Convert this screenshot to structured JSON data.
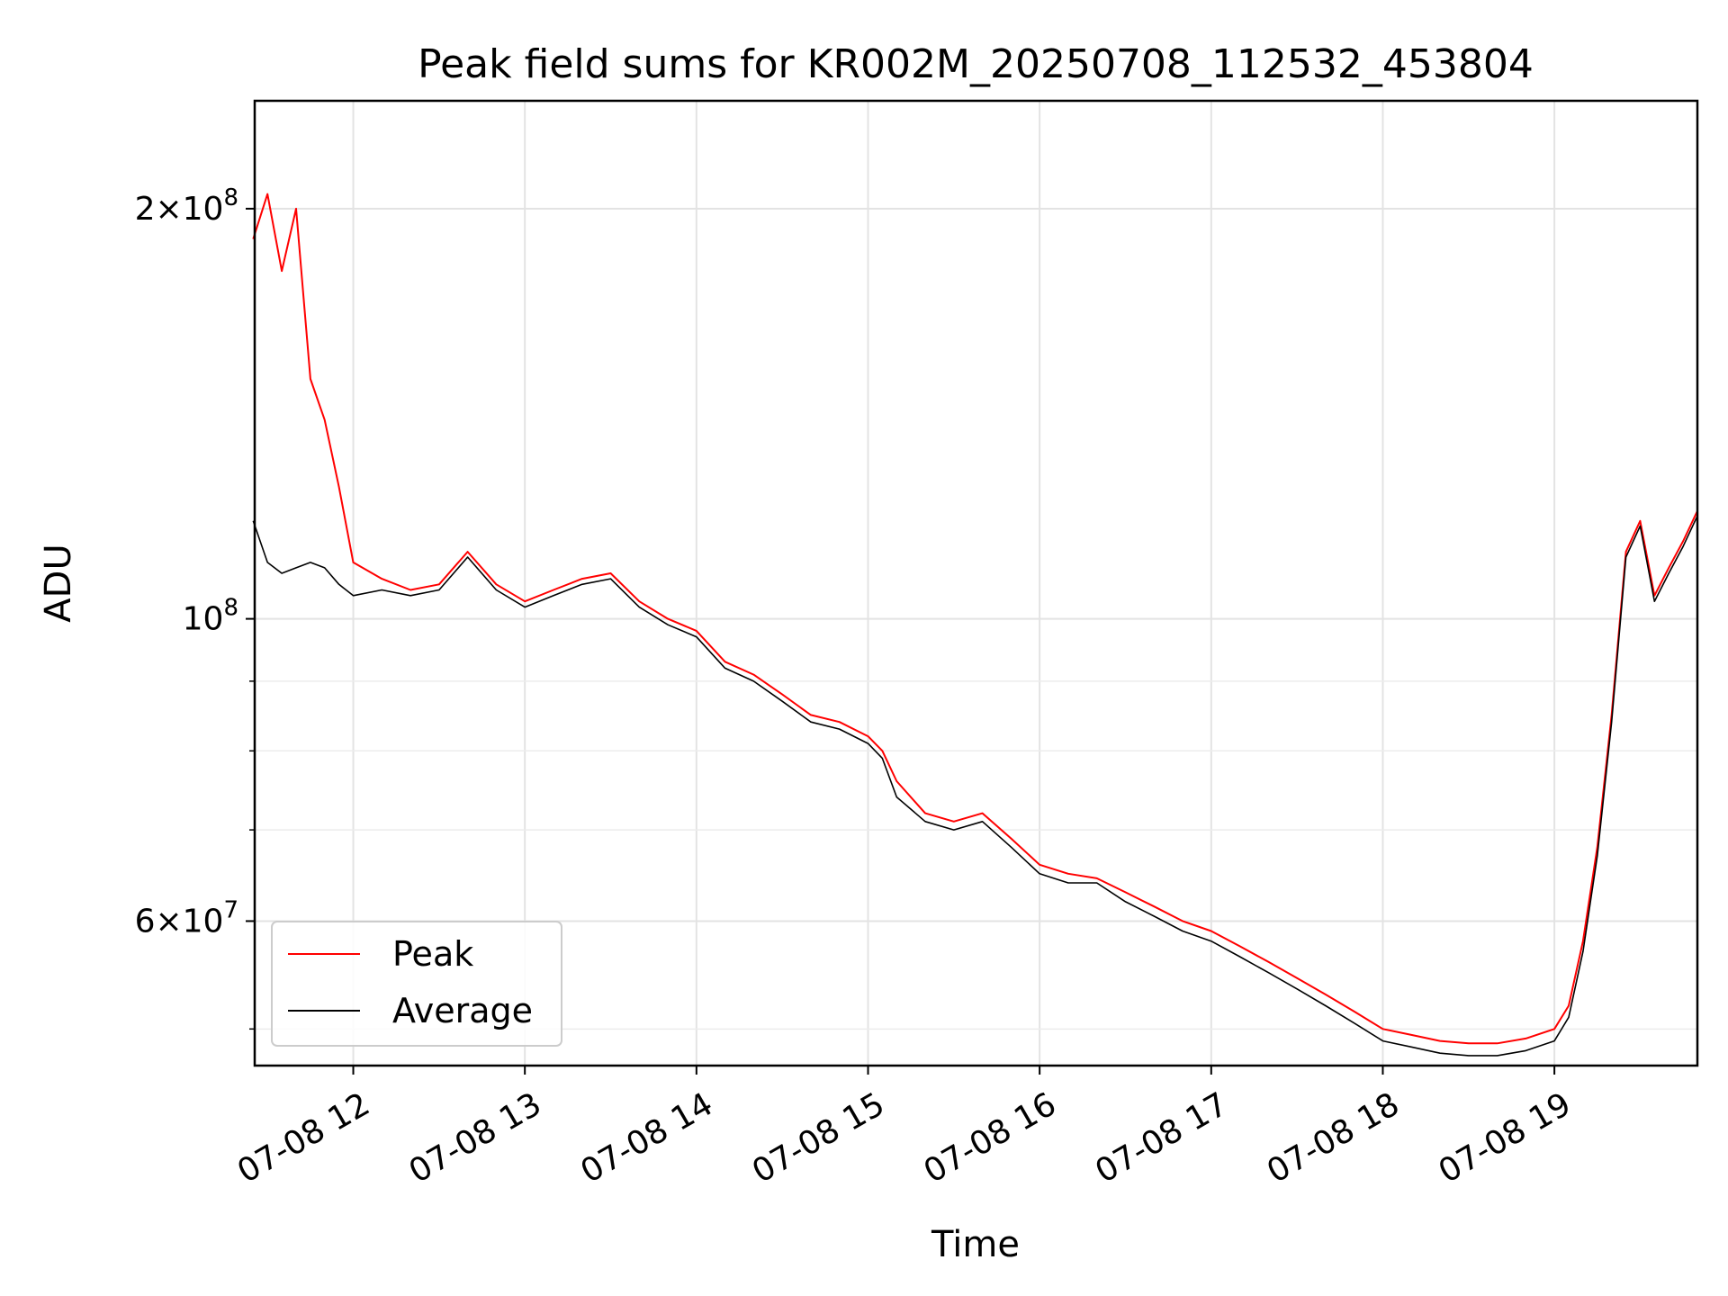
{
  "chart_data": {
    "type": "line",
    "title": "Peak field sums for KR002M_20250708_112532_453804",
    "xlabel": "Time",
    "ylabel": "ADU",
    "yscale": "log",
    "ylim": [
      47000000,
      240000000
    ],
    "xlim": [
      "2025-07-08 11:25:32",
      "2025-07-08 19:50:00"
    ],
    "grid": true,
    "legend_position": "lower-left",
    "x_ticks": [
      {
        "t": "2025-07-08 12:00",
        "label": "07-08 12"
      },
      {
        "t": "2025-07-08 13:00",
        "label": "07-08 13"
      },
      {
        "t": "2025-07-08 14:00",
        "label": "07-08 14"
      },
      {
        "t": "2025-07-08 15:00",
        "label": "07-08 15"
      },
      {
        "t": "2025-07-08 16:00",
        "label": "07-08 16"
      },
      {
        "t": "2025-07-08 17:00",
        "label": "07-08 17"
      },
      {
        "t": "2025-07-08 18:00",
        "label": "07-08 18"
      },
      {
        "t": "2025-07-08 19:00",
        "label": "07-08 19"
      }
    ],
    "y_major_ticks": [
      {
        "v": 100000000,
        "base": "10",
        "exp": "8"
      },
      {
        "v": 200000000,
        "mant": "2",
        "base": "10",
        "exp": "8"
      },
      {
        "v": 60000000,
        "mant": "6",
        "base": "10",
        "exp": "7"
      }
    ],
    "y_minor_ticks": [
      50000000,
      70000000,
      80000000,
      90000000
    ],
    "series": [
      {
        "name": "Peak",
        "color": "#ff0000",
        "x": [
          "2025-07-08 11:25",
          "2025-07-08 11:30",
          "2025-07-08 11:35",
          "2025-07-08 11:40",
          "2025-07-08 11:45",
          "2025-07-08 11:50",
          "2025-07-08 11:55",
          "2025-07-08 12:00",
          "2025-07-08 12:10",
          "2025-07-08 12:20",
          "2025-07-08 12:30",
          "2025-07-08 12:40",
          "2025-07-08 12:50",
          "2025-07-08 13:00",
          "2025-07-08 13:10",
          "2025-07-08 13:20",
          "2025-07-08 13:30",
          "2025-07-08 13:40",
          "2025-07-08 13:50",
          "2025-07-08 14:00",
          "2025-07-08 14:10",
          "2025-07-08 14:20",
          "2025-07-08 14:30",
          "2025-07-08 14:40",
          "2025-07-08 14:50",
          "2025-07-08 15:00",
          "2025-07-08 15:05",
          "2025-07-08 15:10",
          "2025-07-08 15:20",
          "2025-07-08 15:30",
          "2025-07-08 15:40",
          "2025-07-08 15:50",
          "2025-07-08 16:00",
          "2025-07-08 16:10",
          "2025-07-08 16:20",
          "2025-07-08 16:30",
          "2025-07-08 16:40",
          "2025-07-08 16:50",
          "2025-07-08 17:00",
          "2025-07-08 17:10",
          "2025-07-08 17:20",
          "2025-07-08 17:30",
          "2025-07-08 17:40",
          "2025-07-08 17:50",
          "2025-07-08 18:00",
          "2025-07-08 18:10",
          "2025-07-08 18:20",
          "2025-07-08 18:30",
          "2025-07-08 18:40",
          "2025-07-08 18:50",
          "2025-07-08 19:00",
          "2025-07-08 19:05",
          "2025-07-08 19:10",
          "2025-07-08 19:15",
          "2025-07-08 19:20",
          "2025-07-08 19:25",
          "2025-07-08 19:30",
          "2025-07-08 19:35",
          "2025-07-08 19:40",
          "2025-07-08 19:45",
          "2025-07-08 19:50"
        ],
        "y": [
          190000000,
          205000000,
          180000000,
          200000000,
          150000000,
          140000000,
          125000000,
          110000000,
          107000000,
          105000000,
          106000000,
          112000000,
          106000000,
          103000000,
          105000000,
          107000000,
          108000000,
          103000000,
          100000000,
          98000000,
          93000000,
          91000000,
          88000000,
          85000000,
          84000000,
          82000000,
          80000000,
          76000000,
          72000000,
          71000000,
          72000000,
          69000000,
          66000000,
          65000000,
          64500000,
          63000000,
          61500000,
          60000000,
          59000000,
          57500000,
          56000000,
          54500000,
          53000000,
          51500000,
          50000000,
          49500000,
          49000000,
          48800000,
          48800000,
          49200000,
          50000000,
          52000000,
          58000000,
          68000000,
          85000000,
          112000000,
          118000000,
          104000000,
          109000000,
          114000000,
          120000000
        ]
      },
      {
        "name": "Average",
        "color": "#000000",
        "x": [
          "2025-07-08 11:25",
          "2025-07-08 11:30",
          "2025-07-08 11:35",
          "2025-07-08 11:40",
          "2025-07-08 11:45",
          "2025-07-08 11:50",
          "2025-07-08 11:55",
          "2025-07-08 12:00",
          "2025-07-08 12:10",
          "2025-07-08 12:20",
          "2025-07-08 12:30",
          "2025-07-08 12:40",
          "2025-07-08 12:50",
          "2025-07-08 13:00",
          "2025-07-08 13:10",
          "2025-07-08 13:20",
          "2025-07-08 13:30",
          "2025-07-08 13:40",
          "2025-07-08 13:50",
          "2025-07-08 14:00",
          "2025-07-08 14:10",
          "2025-07-08 14:20",
          "2025-07-08 14:30",
          "2025-07-08 14:40",
          "2025-07-08 14:50",
          "2025-07-08 15:00",
          "2025-07-08 15:05",
          "2025-07-08 15:10",
          "2025-07-08 15:20",
          "2025-07-08 15:30",
          "2025-07-08 15:40",
          "2025-07-08 15:50",
          "2025-07-08 16:00",
          "2025-07-08 16:10",
          "2025-07-08 16:20",
          "2025-07-08 16:30",
          "2025-07-08 16:40",
          "2025-07-08 16:50",
          "2025-07-08 17:00",
          "2025-07-08 17:10",
          "2025-07-08 17:20",
          "2025-07-08 17:30",
          "2025-07-08 17:40",
          "2025-07-08 17:50",
          "2025-07-08 18:00",
          "2025-07-08 18:10",
          "2025-07-08 18:20",
          "2025-07-08 18:30",
          "2025-07-08 18:40",
          "2025-07-08 18:50",
          "2025-07-08 19:00",
          "2025-07-08 19:05",
          "2025-07-08 19:10",
          "2025-07-08 19:15",
          "2025-07-08 19:20",
          "2025-07-08 19:25",
          "2025-07-08 19:30",
          "2025-07-08 19:35",
          "2025-07-08 19:40",
          "2025-07-08 19:45",
          "2025-07-08 19:50"
        ],
        "y": [
          118000000,
          110000000,
          108000000,
          109000000,
          110000000,
          109000000,
          106000000,
          104000000,
          105000000,
          104000000,
          105000000,
          111000000,
          105000000,
          102000000,
          104000000,
          106000000,
          107000000,
          102000000,
          99000000,
          97000000,
          92000000,
          90000000,
          87000000,
          84000000,
          83000000,
          81000000,
          79000000,
          74000000,
          71000000,
          70000000,
          71000000,
          68000000,
          65000000,
          64000000,
          64000000,
          62000000,
          60500000,
          59000000,
          58000000,
          56500000,
          55000000,
          53500000,
          52000000,
          50500000,
          49000000,
          48500000,
          48000000,
          47800000,
          47800000,
          48200000,
          49000000,
          51000000,
          57000000,
          67000000,
          84000000,
          111000000,
          117000000,
          103000000,
          108000000,
          113000000,
          119000000
        ]
      }
    ]
  }
}
